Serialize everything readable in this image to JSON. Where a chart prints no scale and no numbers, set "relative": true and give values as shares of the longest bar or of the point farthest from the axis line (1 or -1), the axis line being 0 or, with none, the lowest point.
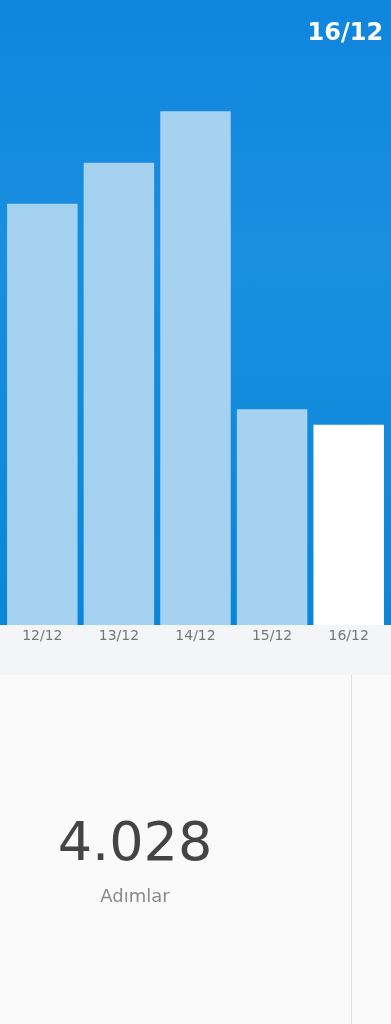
{
  "chart_data": {
    "type": "bar",
    "title": "16/12",
    "relative": true,
    "categories": [
      "12/12",
      "13/12",
      "14/12",
      "15/12",
      "16/12"
    ],
    "values": [
      0.82,
      0.9,
      1,
      0.42,
      0.39
    ],
    "colors": [
      "#a6d2f2",
      "#a6d2f2",
      "#a6d2f2",
      "#a6d2f2",
      "#ffffff"
    ],
    "grid": false,
    "legend": false,
    "annotations": [
      "4.028",
      "Adımlar"
    ]
  }
}
